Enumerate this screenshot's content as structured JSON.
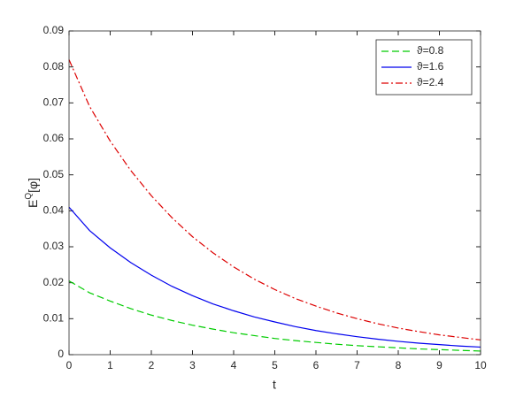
{
  "chart_data": {
    "type": "line",
    "xlabel": "t",
    "ylabel": {
      "base": "E",
      "sup": "Q",
      "rest": "[φ]"
    },
    "x": [
      0,
      0.5,
      1,
      1.5,
      2,
      2.5,
      3,
      3.5,
      4,
      4.5,
      5,
      5.5,
      6,
      6.5,
      7,
      7.5,
      8,
      8.5,
      9,
      9.5,
      10
    ],
    "series": [
      {
        "name": "ϑ=0.8",
        "color": "#00cc00",
        "dash": "dashed",
        "values": [
          0.0205,
          0.0172,
          0.0149,
          0.0128,
          0.011,
          0.0095,
          0.0082,
          0.0071,
          0.0061,
          0.0053,
          0.0045,
          0.0039,
          0.0034,
          0.0029,
          0.0025,
          0.0022,
          0.0019,
          0.0016,
          0.0014,
          0.0012,
          0.001
        ]
      },
      {
        "name": "ϑ=1.6",
        "color": "#0000ee",
        "dash": "solid",
        "values": [
          0.041,
          0.0345,
          0.0297,
          0.0256,
          0.0221,
          0.019,
          0.0164,
          0.0141,
          0.0122,
          0.0105,
          0.0091,
          0.0078,
          0.0067,
          0.0058,
          0.005,
          0.0043,
          0.0037,
          0.0032,
          0.0028,
          0.0024,
          0.0021
        ]
      },
      {
        "name": "ϑ=2.4",
        "color": "#dd0000",
        "dash": "dashdot",
        "values": [
          0.082,
          0.069,
          0.0594,
          0.0512,
          0.0442,
          0.0381,
          0.0328,
          0.0283,
          0.0244,
          0.021,
          0.0181,
          0.0156,
          0.0135,
          0.0116,
          0.01,
          0.0086,
          0.0074,
          0.0064,
          0.0055,
          0.0048,
          0.0041
        ]
      }
    ],
    "xlim": [
      0,
      10
    ],
    "xticks": [
      0,
      1,
      2,
      3,
      4,
      5,
      6,
      7,
      8,
      9,
      10
    ],
    "ylim": [
      0,
      0.09
    ],
    "yticks": [
      0,
      0.01,
      0.02,
      0.03,
      0.04,
      0.05,
      0.06,
      0.07,
      0.08,
      0.09
    ],
    "legend": "top-right",
    "grid": false
  }
}
